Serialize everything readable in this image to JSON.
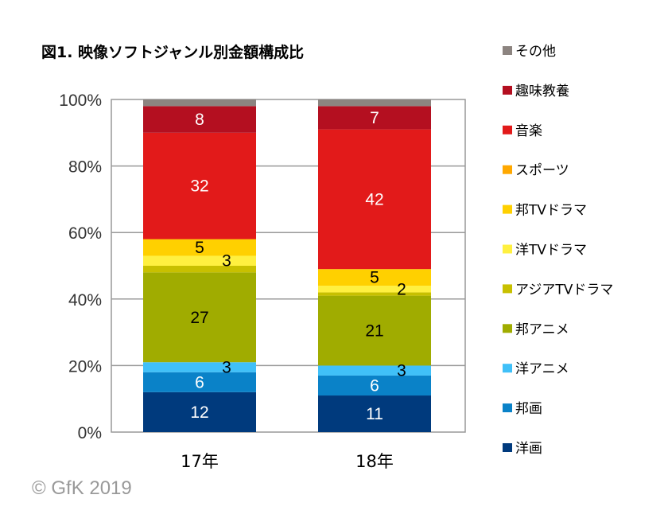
{
  "chart_data": {
    "type": "stacked-bar",
    "title": "図1. 映像ソフトジャンル別金額構成比",
    "categories": [
      "17年",
      "18年"
    ],
    "ylim": [
      0,
      100
    ],
    "yticks": [
      "0%",
      "20%",
      "40%",
      "60%",
      "80%",
      "100%"
    ],
    "grid": true,
    "legend_position": "right",
    "series": [
      {
        "name": "洋画",
        "color": "#003a7d",
        "values": [
          12,
          11
        ],
        "labels": [
          "12",
          "11"
        ],
        "label_color": "#ffffff"
      },
      {
        "name": "邦画",
        "color": "#0a82c8",
        "values": [
          6,
          6
        ],
        "labels": [
          "6",
          "6"
        ],
        "label_color": "#ffffff"
      },
      {
        "name": "洋アニメ",
        "color": "#40c0f8",
        "values": [
          3,
          3
        ],
        "labels": [
          "3",
          "3"
        ],
        "label_color": "#000000"
      },
      {
        "name": "邦アニメ",
        "color": "#a0ac00",
        "values": [
          27,
          21
        ],
        "labels": [
          "27",
          "21"
        ],
        "label_color": "#000000"
      },
      {
        "name": "アジアTVドラマ",
        "color": "#c8c000",
        "values": [
          2,
          1
        ],
        "labels": [
          null,
          null
        ],
        "label_color": "#000000"
      },
      {
        "name": "洋TVドラマ",
        "color": "#fff040",
        "values": [
          3,
          2
        ],
        "labels": [
          "3",
          "2"
        ],
        "label_color": "#000000"
      },
      {
        "name": "邦TVドラマ",
        "color": "#ffd000",
        "values": [
          5,
          5
        ],
        "labels": [
          "5",
          "5"
        ],
        "label_color": "#000000"
      },
      {
        "name": "スポーツ",
        "color": "#ffa800",
        "values": [
          0,
          0
        ],
        "labels": [
          null,
          null
        ],
        "label_color": "#000000"
      },
      {
        "name": "音楽",
        "color": "#e21a1a",
        "values": [
          32,
          42
        ],
        "labels": [
          "32",
          "42"
        ],
        "label_color": "#ffffff"
      },
      {
        "name": "趣味教養",
        "color": "#b40f20",
        "values": [
          8,
          7
        ],
        "labels": [
          "8",
          "7"
        ],
        "label_color": "#ffffff"
      },
      {
        "name": "その他",
        "color": "#8c8480",
        "values": [
          2,
          2
        ],
        "labels": [
          null,
          null
        ],
        "label_color": "#ffffff"
      }
    ]
  },
  "copyright": "© GfK 2019"
}
